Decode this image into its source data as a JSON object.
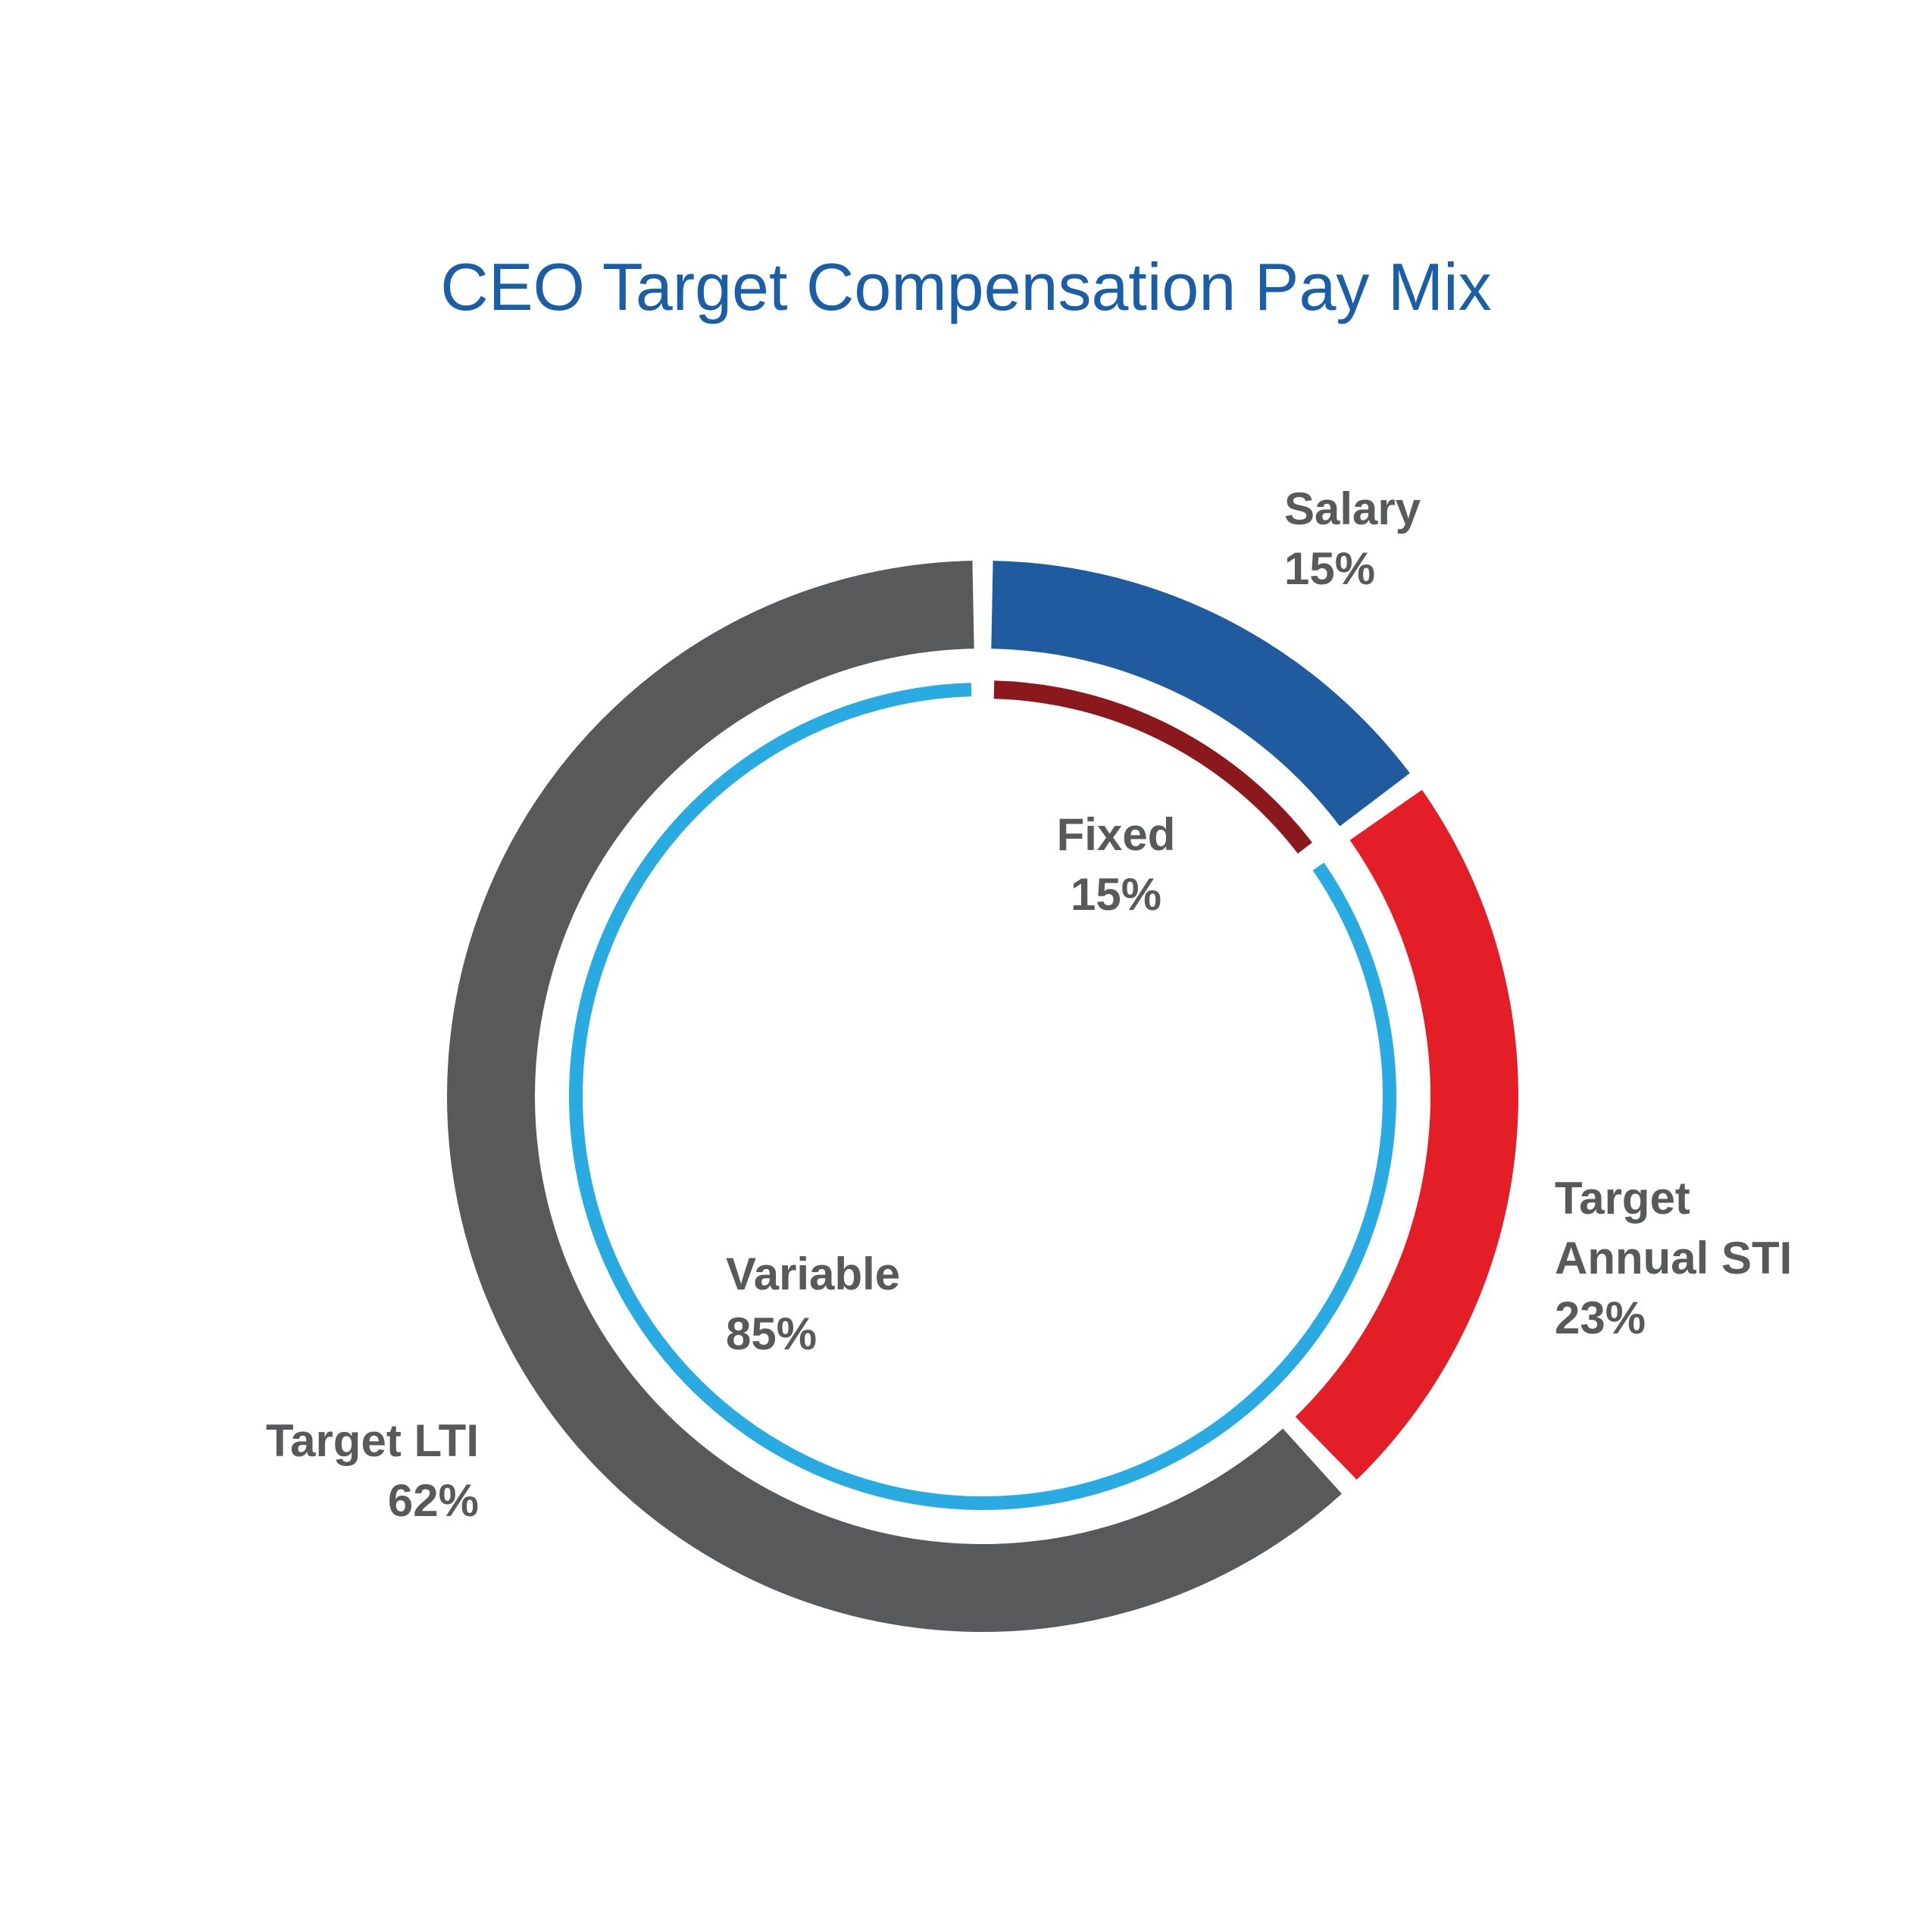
{
  "title": "CEO Target Compensation Pay Mix",
  "colors": {
    "title_blue": "#1a5ea8",
    "label_gray": "#58595b",
    "background": "#ffffff"
  },
  "chart_data": {
    "type": "donut",
    "title": "CEO Target Compensation Pay Mix",
    "direction": "clockwise",
    "start_angle": "12 o'clock",
    "legend_position": "labels around chart",
    "outer_ring": {
      "name": "pay-components",
      "segments": [
        {
          "label": "Salary",
          "value": 15,
          "unit": "%",
          "color": "#1f5b9e"
        },
        {
          "label": "Target Annual STI",
          "value": 23,
          "unit": "%",
          "color": "#e31e26"
        },
        {
          "label": "Target LTI",
          "value": 62,
          "unit": "%",
          "color": "#58595b"
        }
      ]
    },
    "inner_ring": {
      "name": "fixed-vs-variable",
      "segments": [
        {
          "label": "Fixed",
          "value": 15,
          "unit": "%",
          "color": "#8b181d"
        },
        {
          "label": "Variable",
          "value": 85,
          "unit": "%",
          "color": "#29abe2"
        }
      ]
    }
  },
  "labels": {
    "salary": {
      "line1": "Salary",
      "line2": "15%"
    },
    "sti": {
      "line1": "Target",
      "line2": "Annual STI",
      "line3": "23%"
    },
    "lti": {
      "line1": "Target LTI",
      "line2": "62%"
    },
    "fixed": {
      "line1": "Fixed",
      "line2": "15%"
    },
    "variable": {
      "line1": "Variable",
      "line2": "85%"
    }
  }
}
